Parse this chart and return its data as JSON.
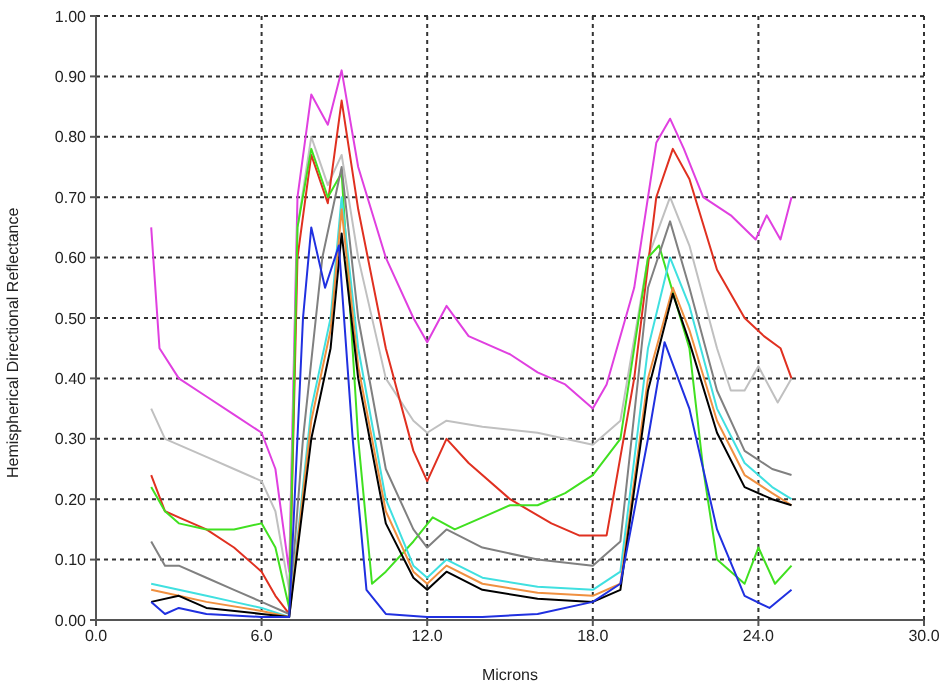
{
  "chart_data": {
    "type": "line",
    "xlabel": "Microns",
    "ylabel": "Hemispherical Directional Reflectance",
    "xlim": [
      0,
      30
    ],
    "xticks": [
      {
        "value": 0,
        "label": "0.0"
      },
      {
        "value": 6,
        "label": "6.0"
      },
      {
        "value": 12,
        "label": "12.0"
      },
      {
        "value": 18,
        "label": "18.0"
      },
      {
        "value": 24,
        "label": "24.0"
      },
      {
        "value": 30,
        "label": "30.0"
      }
    ],
    "ylim": [
      0,
      1
    ],
    "yticks": [
      {
        "value": 0,
        "label": "0.00"
      },
      {
        "value": 0.1,
        "label": "0.10"
      },
      {
        "value": 0.2,
        "label": "0.20"
      },
      {
        "value": 0.3,
        "label": "0.30"
      },
      {
        "value": 0.4,
        "label": "0.40"
      },
      {
        "value": 0.5,
        "label": "0.50"
      },
      {
        "value": 0.6,
        "label": "0.60"
      },
      {
        "value": 0.7,
        "label": "0.70"
      },
      {
        "value": 0.8,
        "label": "0.80"
      },
      {
        "value": 0.9,
        "label": "0.90"
      },
      {
        "value": 1,
        "label": "1.00"
      }
    ],
    "grid": true,
    "marker": "none",
    "line_style": "solid",
    "series": [
      {
        "color": "#e040e0",
        "x": [
          2.0,
          2.3,
          3,
          4,
          5,
          6,
          6.5,
          7.0,
          7.3,
          7.8,
          8.4,
          8.9,
          9.5,
          10.5,
          11.5,
          12.0,
          12.7,
          13.5,
          15,
          16,
          17,
          18,
          18.5,
          19.5,
          20.3,
          20.8,
          21.3,
          22,
          23,
          23.9,
          24.3,
          24.8,
          25.2
        ],
        "values": [
          0.65,
          0.45,
          0.4,
          0.37,
          0.34,
          0.31,
          0.25,
          0.08,
          0.7,
          0.87,
          0.82,
          0.91,
          0.75,
          0.6,
          0.5,
          0.46,
          0.52,
          0.47,
          0.44,
          0.41,
          0.39,
          0.35,
          0.39,
          0.55,
          0.79,
          0.83,
          0.78,
          0.7,
          0.67,
          0.63,
          0.67,
          0.63,
          0.7
        ]
      },
      {
        "color": "#c0c0c0",
        "x": [
          2.0,
          2.5,
          3,
          4,
          5,
          6,
          6.5,
          7.0,
          7.3,
          7.8,
          8.4,
          8.9,
          9.5,
          10.5,
          11.5,
          12.0,
          12.7,
          14,
          16,
          18,
          19,
          20,
          20.8,
          21.5,
          22.5,
          23.0,
          23.5,
          24.0,
          24.7,
          25.2
        ],
        "values": [
          0.35,
          0.3,
          0.29,
          0.27,
          0.25,
          0.23,
          0.18,
          0.05,
          0.65,
          0.8,
          0.72,
          0.77,
          0.6,
          0.4,
          0.33,
          0.31,
          0.33,
          0.32,
          0.31,
          0.29,
          0.33,
          0.6,
          0.7,
          0.62,
          0.45,
          0.38,
          0.38,
          0.42,
          0.36,
          0.4
        ]
      },
      {
        "color": "#e03020",
        "x": [
          2.0,
          2.5,
          3,
          4,
          5,
          6,
          6.5,
          7.0,
          7.3,
          7.8,
          8.4,
          8.9,
          9.5,
          10.5,
          11.5,
          12.0,
          12.7,
          13.5,
          15,
          16.5,
          17.5,
          18.5,
          19.5,
          20.3,
          20.9,
          21.5,
          22.5,
          23.5,
          24.2,
          24.8,
          25.2
        ],
        "values": [
          0.24,
          0.18,
          0.17,
          0.15,
          0.12,
          0.08,
          0.04,
          0.01,
          0.6,
          0.77,
          0.69,
          0.86,
          0.68,
          0.45,
          0.28,
          0.23,
          0.3,
          0.26,
          0.2,
          0.16,
          0.14,
          0.14,
          0.4,
          0.7,
          0.78,
          0.73,
          0.58,
          0.5,
          0.47,
          0.45,
          0.4
        ]
      },
      {
        "color": "#40e020",
        "x": [
          2.0,
          2.5,
          3,
          4,
          5,
          6,
          6.5,
          7.0,
          7.3,
          7.8,
          8.4,
          8.9,
          9.5,
          10,
          10.5,
          11.5,
          12.2,
          13,
          14,
          15,
          16,
          17,
          18,
          19,
          20,
          20.4,
          21.5,
          22,
          22.5,
          23.5,
          24.0,
          24.6,
          25.2
        ],
        "values": [
          0.22,
          0.18,
          0.16,
          0.15,
          0.15,
          0.16,
          0.12,
          0.02,
          0.65,
          0.78,
          0.7,
          0.74,
          0.3,
          0.06,
          0.08,
          0.13,
          0.17,
          0.15,
          0.17,
          0.19,
          0.19,
          0.21,
          0.24,
          0.3,
          0.6,
          0.62,
          0.45,
          0.25,
          0.1,
          0.06,
          0.12,
          0.06,
          0.09
        ]
      },
      {
        "color": "#808080",
        "x": [
          2.0,
          2.5,
          3,
          4,
          5,
          6,
          7.0,
          7.5,
          8.2,
          8.9,
          9.5,
          10.5,
          11.5,
          12.0,
          12.7,
          14,
          16,
          18,
          19,
          20,
          20.8,
          21.5,
          22.5,
          23.5,
          24.5,
          25.2
        ],
        "values": [
          0.13,
          0.09,
          0.09,
          0.07,
          0.05,
          0.03,
          0.01,
          0.3,
          0.6,
          0.75,
          0.5,
          0.25,
          0.15,
          0.12,
          0.15,
          0.12,
          0.1,
          0.09,
          0.13,
          0.55,
          0.66,
          0.55,
          0.38,
          0.28,
          0.25,
          0.24
        ]
      },
      {
        "color": "#40e0e0",
        "x": [
          2.0,
          3,
          4,
          5,
          6,
          7.0,
          7.8,
          8.5,
          8.9,
          9.5,
          10.5,
          11.5,
          12.0,
          12.7,
          14,
          16,
          18,
          19,
          20,
          20.8,
          21.5,
          22.5,
          23.5,
          24.5,
          25.2
        ],
        "values": [
          0.06,
          0.05,
          0.04,
          0.03,
          0.02,
          0.005,
          0.35,
          0.5,
          0.7,
          0.45,
          0.2,
          0.09,
          0.07,
          0.1,
          0.07,
          0.055,
          0.05,
          0.08,
          0.45,
          0.6,
          0.52,
          0.35,
          0.26,
          0.22,
          0.2
        ]
      },
      {
        "color": "#f09040",
        "x": [
          2.0,
          3,
          4,
          6,
          7.0,
          7.8,
          8.5,
          8.9,
          9.5,
          10.5,
          11.5,
          12.0,
          12.7,
          14,
          16,
          18,
          19,
          20,
          20.9,
          21.5,
          22.5,
          23.5,
          24.5,
          25.2
        ],
        "values": [
          0.05,
          0.04,
          0.03,
          0.015,
          0.005,
          0.33,
          0.48,
          0.68,
          0.42,
          0.18,
          0.08,
          0.06,
          0.09,
          0.06,
          0.045,
          0.04,
          0.06,
          0.4,
          0.55,
          0.48,
          0.33,
          0.24,
          0.21,
          0.19
        ]
      },
      {
        "color": "#000000",
        "x": [
          2.0,
          3,
          4,
          6,
          7.0,
          7.8,
          8.5,
          8.9,
          9.5,
          10.5,
          11.5,
          12.0,
          12.7,
          14,
          16,
          18,
          19,
          20,
          20.9,
          21.5,
          22.5,
          23.5,
          24.5,
          25.2
        ],
        "values": [
          0.03,
          0.04,
          0.02,
          0.01,
          0.005,
          0.3,
          0.45,
          0.64,
          0.4,
          0.16,
          0.07,
          0.05,
          0.08,
          0.05,
          0.035,
          0.03,
          0.05,
          0.38,
          0.54,
          0.46,
          0.31,
          0.22,
          0.2,
          0.19
        ]
      },
      {
        "color": "#2030e0",
        "x": [
          2.0,
          2.5,
          3,
          4,
          6,
          7.0,
          7.5,
          7.8,
          8.3,
          8.8,
          9.3,
          9.8,
          10.5,
          12,
          14,
          16,
          18,
          19,
          20,
          20.6,
          21.5,
          22.5,
          23.5,
          24.4,
          25.2
        ],
        "values": [
          0.03,
          0.01,
          0.02,
          0.01,
          0.005,
          0.005,
          0.5,
          0.65,
          0.55,
          0.62,
          0.3,
          0.05,
          0.01,
          0.005,
          0.005,
          0.01,
          0.03,
          0.06,
          0.3,
          0.46,
          0.35,
          0.15,
          0.04,
          0.02,
          0.05
        ]
      }
    ]
  }
}
